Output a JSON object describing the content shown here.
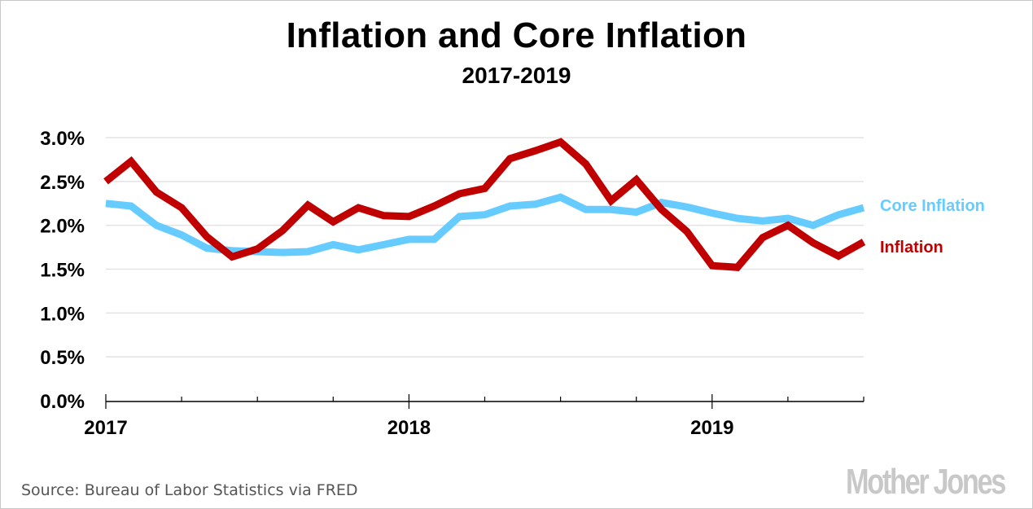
{
  "chart_data": {
    "type": "line",
    "title": "Inflation and Core Inflation",
    "subtitle": "2017-2019",
    "xlabel": "",
    "ylabel": "",
    "x": [
      "2017-01",
      "2017-02",
      "2017-03",
      "2017-04",
      "2017-05",
      "2017-06",
      "2017-07",
      "2017-08",
      "2017-09",
      "2017-10",
      "2017-11",
      "2017-12",
      "2018-01",
      "2018-02",
      "2018-03",
      "2018-04",
      "2018-05",
      "2018-06",
      "2018-07",
      "2018-08",
      "2018-09",
      "2018-10",
      "2018-11",
      "2018-12",
      "2019-01",
      "2019-02",
      "2019-03",
      "2019-04",
      "2019-05",
      "2019-06",
      "2019-07"
    ],
    "x_tick_labels": [
      "2017",
      "2018",
      "2019"
    ],
    "y_tick_labels": [
      "0.0%",
      "0.5%",
      "1.0%",
      "1.5%",
      "2.0%",
      "2.5%",
      "3.0%"
    ],
    "ylim": [
      0,
      3.0
    ],
    "y_ticks": [
      0,
      0.5,
      1.0,
      1.5,
      2.0,
      2.5,
      3.0
    ],
    "grid": true,
    "legend": "right (inline labels at line ends)",
    "series": [
      {
        "name": "Core Inflation",
        "color": "#66ccff",
        "values": [
          2.25,
          2.22,
          2.0,
          1.89,
          1.74,
          1.71,
          1.7,
          1.69,
          1.7,
          1.78,
          1.72,
          1.78,
          1.84,
          1.84,
          2.1,
          2.12,
          2.22,
          2.24,
          2.32,
          2.18,
          2.18,
          2.15,
          2.26,
          2.21,
          2.14,
          2.08,
          2.05,
          2.08,
          2.0,
          2.12,
          2.2
        ]
      },
      {
        "name": "Inflation",
        "color": "#c00000",
        "values": [
          2.5,
          2.73,
          2.38,
          2.2,
          1.87,
          1.64,
          1.73,
          1.94,
          2.23,
          2.04,
          2.2,
          2.11,
          2.1,
          2.22,
          2.36,
          2.42,
          2.76,
          2.85,
          2.95,
          2.7,
          2.28,
          2.52,
          2.18,
          1.93,
          1.54,
          1.52,
          1.86,
          2.0,
          1.8,
          1.65,
          1.81
        ]
      }
    ]
  },
  "footer": {
    "source": "Source: Bureau of Labor Statistics via FRED",
    "logo": "Mother Jones"
  }
}
